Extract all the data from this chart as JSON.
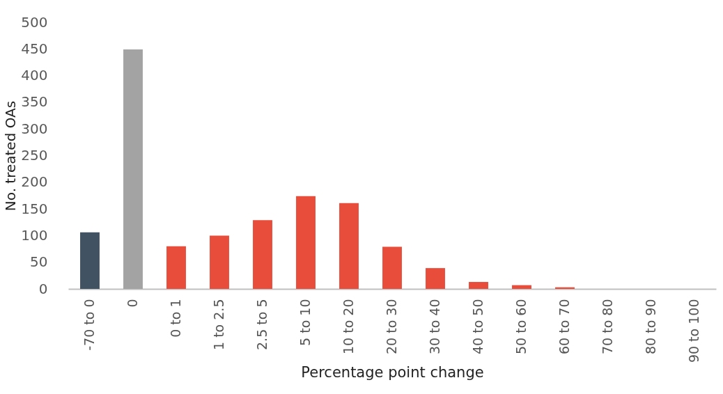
{
  "chart_data": {
    "type": "bar",
    "xlabel": "Percentage point change",
    "ylabel": "No. treated OAs",
    "categories": [
      "-70 to 0",
      "0",
      "0 to 1",
      "1 to 2.5",
      "2.5 to 5",
      "5 to 10",
      "10 to 20",
      "20 to 30",
      "30 to 40",
      "40 to 50",
      "50 to 60",
      "60 to 70",
      "70 to 80",
      "80 to 90",
      "90 to 100"
    ],
    "values": [
      106,
      449,
      80,
      100,
      129,
      174,
      161,
      79,
      39,
      13,
      7,
      3,
      0,
      0,
      0
    ],
    "colors": [
      "#415262",
      "#a3a3a3",
      "#e84c3a",
      "#e84c3a",
      "#e84c3a",
      "#e84c3a",
      "#e84c3a",
      "#e84c3a",
      "#e84c3a",
      "#e84c3a",
      "#e84c3a",
      "#e84c3a",
      "#e84c3a",
      "#e84c3a",
      "#e84c3a"
    ],
    "ylim": [
      0,
      500
    ],
    "yticks": [
      0,
      50,
      100,
      150,
      200,
      250,
      300,
      350,
      400,
      450,
      500
    ],
    "grid": false
  }
}
